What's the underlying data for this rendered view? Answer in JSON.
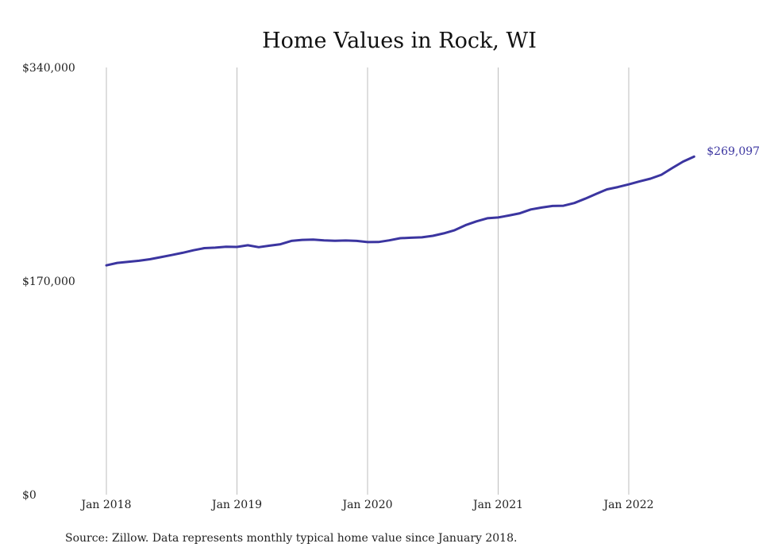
{
  "chart_data": {
    "type": "line",
    "title": "Home Values in Rock, WI",
    "xlabel": "",
    "ylabel": "",
    "ylim": [
      0,
      340000
    ],
    "y_ticks": [
      {
        "value": 0,
        "label": "$0"
      },
      {
        "value": 170000,
        "label": "$170,000"
      },
      {
        "value": 340000,
        "label": "$340,000"
      }
    ],
    "x_ticks": [
      "Jan 2018",
      "Jan 2019",
      "Jan 2020",
      "Jan 2021",
      "Jan 2022"
    ],
    "grid": "vertical",
    "legend": "none",
    "end_label": "$269,097",
    "line_color": "#3b35a0",
    "series": [
      {
        "x": [
          "2018-01",
          "2018-02",
          "2018-03",
          "2018-04",
          "2018-05",
          "2018-06",
          "2018-07",
          "2018-08",
          "2018-09",
          "2018-10",
          "2018-11",
          "2018-12",
          "2019-01",
          "2019-02",
          "2019-03",
          "2019-04",
          "2019-05",
          "2019-06",
          "2019-07",
          "2019-08",
          "2019-09",
          "2019-10",
          "2019-11",
          "2019-12",
          "2020-01",
          "2020-02",
          "2020-03",
          "2020-04",
          "2020-05",
          "2020-06",
          "2020-07",
          "2020-08",
          "2020-09",
          "2020-10",
          "2020-11",
          "2020-12",
          "2021-01",
          "2021-02",
          "2021-03",
          "2021-04",
          "2021-05",
          "2021-06",
          "2021-07",
          "2021-08",
          "2021-09",
          "2021-10",
          "2021-11",
          "2021-12",
          "2022-01",
          "2022-02",
          "2022-03",
          "2022-04",
          "2022-05",
          "2022-06",
          "2022-07"
        ],
        "values": [
          182500,
          184500,
          185300,
          186200,
          187400,
          189000,
          190700,
          192500,
          194500,
          196200,
          196600,
          197300,
          197200,
          198500,
          197000,
          198200,
          199300,
          202000,
          202800,
          203000,
          202400,
          202100,
          202300,
          202000,
          201000,
          201100,
          202400,
          204100,
          204500,
          204800,
          206000,
          208000,
          210500,
          214500,
          217500,
          220000,
          220600,
          222200,
          224000,
          227000,
          228500,
          229800,
          230000,
          232100,
          235600,
          239300,
          243000,
          244800,
          247000,
          249400,
          251500,
          254600,
          260000,
          265100,
          269097
        ]
      }
    ],
    "source": "Source: Zillow. Data represents monthly typical home value since January 2018."
  }
}
